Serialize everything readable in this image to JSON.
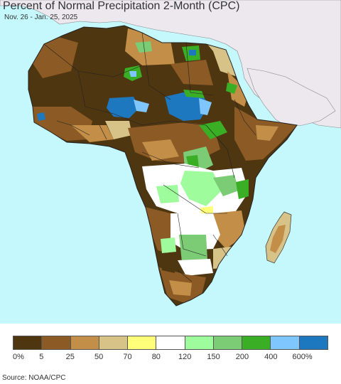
{
  "header": {
    "title": "Percent of Normal Precipitation 2-Month (CPC)",
    "subtitle": "Nov. 26 - Jan. 25, 2025"
  },
  "map": {
    "ocean_color": "#c4f8fc",
    "land_outside_color": "#ece8ee"
  },
  "legend": {
    "colors": [
      "#4e3610",
      "#8c5a24",
      "#c38e48",
      "#d7c287",
      "#ffff7a",
      "#ffffff",
      "#9ffc9c",
      "#7ccc76",
      "#3aae24",
      "#7fc6ff",
      "#1e78c0"
    ],
    "labels": [
      "0%",
      "5",
      "25",
      "50",
      "70",
      "80",
      "120",
      "150",
      "200",
      "400",
      "600%"
    ]
  },
  "footer": {
    "source": "Source: NOAA/CPC"
  }
}
